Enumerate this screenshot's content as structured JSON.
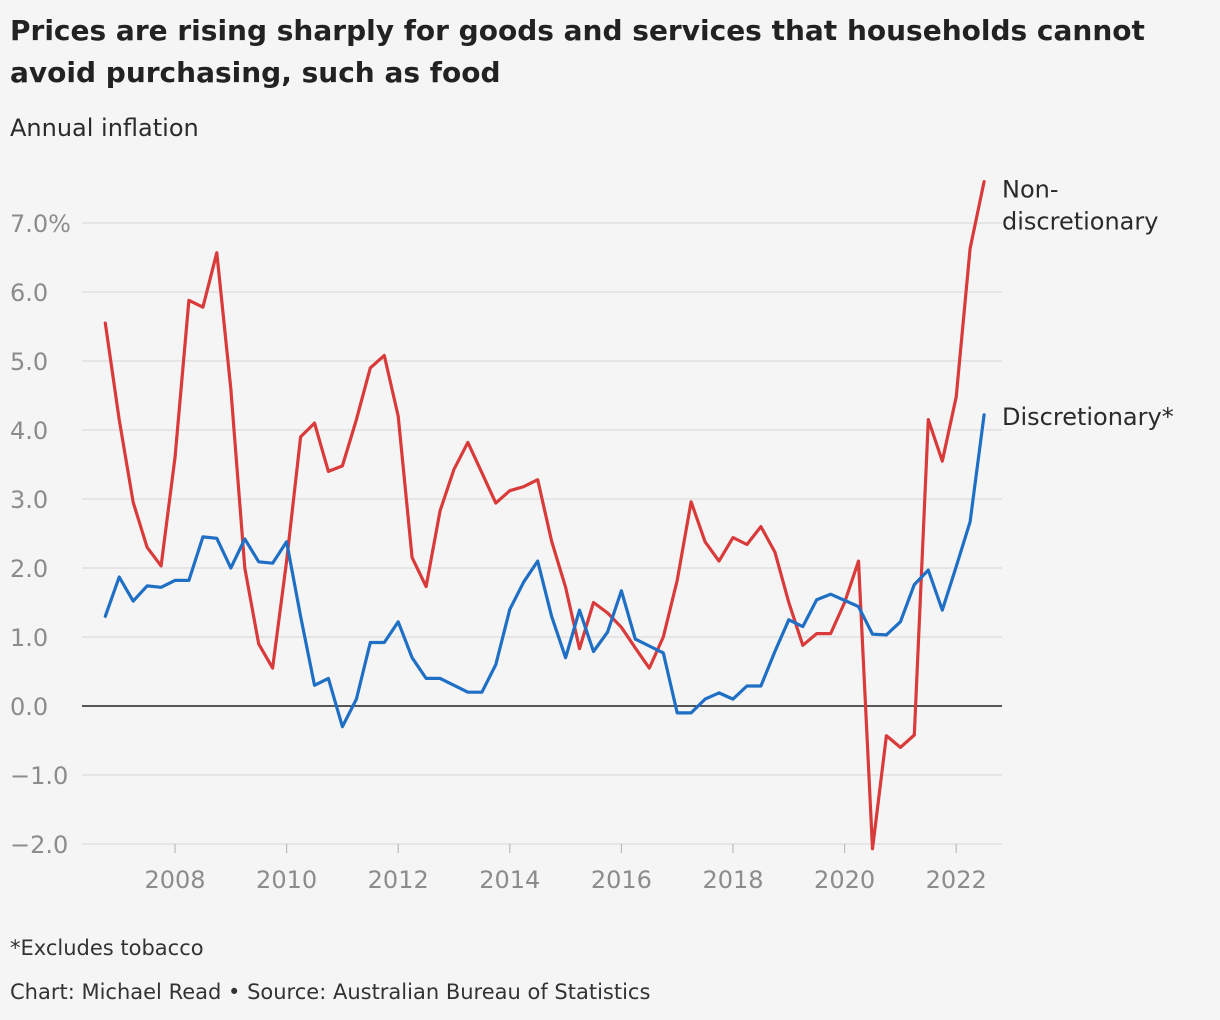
{
  "title": "Prices are rising sharply for goods and services that households cannot avoid purchasing, such as food",
  "subtitle": "Annual inflation",
  "footnote": "*Excludes tobacco",
  "credit": "Chart: Michael Read • Source: Australian Bureau of Statistics",
  "chart_data": {
    "type": "line",
    "ylabel": "Annual inflation",
    "ylim": [
      -2.0,
      7.0
    ],
    "yticks": [
      7.0,
      6.0,
      5.0,
      4.0,
      3.0,
      2.0,
      1.0,
      0.0,
      -1.0,
      -2.0
    ],
    "ytick_labels": [
      "7.0%",
      "6.0",
      "5.0",
      "4.0",
      "3.0",
      "2.0",
      "1.0",
      "0.0",
      "−1.0",
      "−2.0"
    ],
    "xticks": [
      2008,
      2010,
      2012,
      2014,
      2016,
      2018,
      2020,
      2022
    ],
    "xtick_labels": [
      "2008",
      "2010",
      "2012",
      "2014",
      "2016",
      "2018",
      "2020",
      "2022"
    ],
    "grid": true,
    "x": [
      2006.75,
      2007.0,
      2007.25,
      2007.5,
      2007.75,
      2008.0,
      2008.25,
      2008.5,
      2008.75,
      2009.0,
      2009.25,
      2009.5,
      2009.75,
      2010.0,
      2010.25,
      2010.5,
      2010.75,
      2011.0,
      2011.25,
      2011.5,
      2011.75,
      2012.0,
      2012.25,
      2012.5,
      2012.75,
      2013.0,
      2013.25,
      2013.5,
      2013.75,
      2014.0,
      2014.25,
      2014.5,
      2014.75,
      2015.0,
      2015.25,
      2015.5,
      2015.75,
      2016.0,
      2016.25,
      2016.5,
      2016.75,
      2017.0,
      2017.25,
      2017.5,
      2017.75,
      2018.0,
      2018.25,
      2018.5,
      2018.75,
      2019.0,
      2019.25,
      2019.5,
      2019.75,
      2020.0,
      2020.25,
      2020.5,
      2020.75,
      2021.0,
      2021.25,
      2021.5,
      2021.75,
      2022.0,
      2022.25,
      2022.5
    ],
    "series": [
      {
        "name": "Non-discretionary",
        "label_lines": [
          "Non-",
          "discretionary"
        ],
        "color": "#d93b3b",
        "values": [
          5.55,
          4.15,
          2.95,
          2.3,
          2.03,
          3.6,
          5.88,
          5.78,
          6.57,
          4.6,
          2.0,
          0.9,
          0.55,
          2.1,
          3.9,
          4.1,
          3.4,
          3.48,
          4.15,
          4.9,
          5.08,
          4.2,
          2.15,
          1.73,
          2.83,
          3.43,
          3.82,
          3.38,
          2.94,
          3.12,
          3.18,
          3.28,
          2.39,
          1.72,
          0.83,
          1.5,
          1.35,
          1.14,
          0.84,
          0.55,
          1.0,
          1.82,
          2.96,
          2.38,
          2.1,
          2.44,
          2.34,
          2.6,
          2.23,
          1.5,
          0.88,
          1.05,
          1.05,
          1.5,
          2.1,
          -2.07,
          -0.43,
          -0.6,
          -0.42,
          4.15,
          3.55,
          4.48,
          6.63,
          7.6
        ]
      },
      {
        "name": "Discretionary*",
        "label_lines": [
          "Discretionary*"
        ],
        "color": "#1f6fc5",
        "values": [
          1.3,
          1.87,
          1.52,
          1.74,
          1.72,
          1.82,
          1.82,
          2.45,
          2.43,
          2.0,
          2.42,
          2.09,
          2.07,
          2.38,
          1.3,
          0.3,
          0.4,
          -0.3,
          0.1,
          0.92,
          0.92,
          1.22,
          0.7,
          0.4,
          0.4,
          0.3,
          0.2,
          0.2,
          0.6,
          1.4,
          1.8,
          2.1,
          1.3,
          0.7,
          1.39,
          0.79,
          1.07,
          1.67,
          0.97,
          0.87,
          0.77,
          -0.1,
          -0.1,
          0.1,
          0.19,
          0.1,
          0.29,
          0.29,
          0.79,
          1.25,
          1.15,
          1.54,
          1.62,
          1.53,
          1.44,
          1.04,
          1.03,
          1.22,
          1.76,
          1.97,
          1.39,
          2.02,
          2.67,
          4.22
        ]
      }
    ]
  }
}
